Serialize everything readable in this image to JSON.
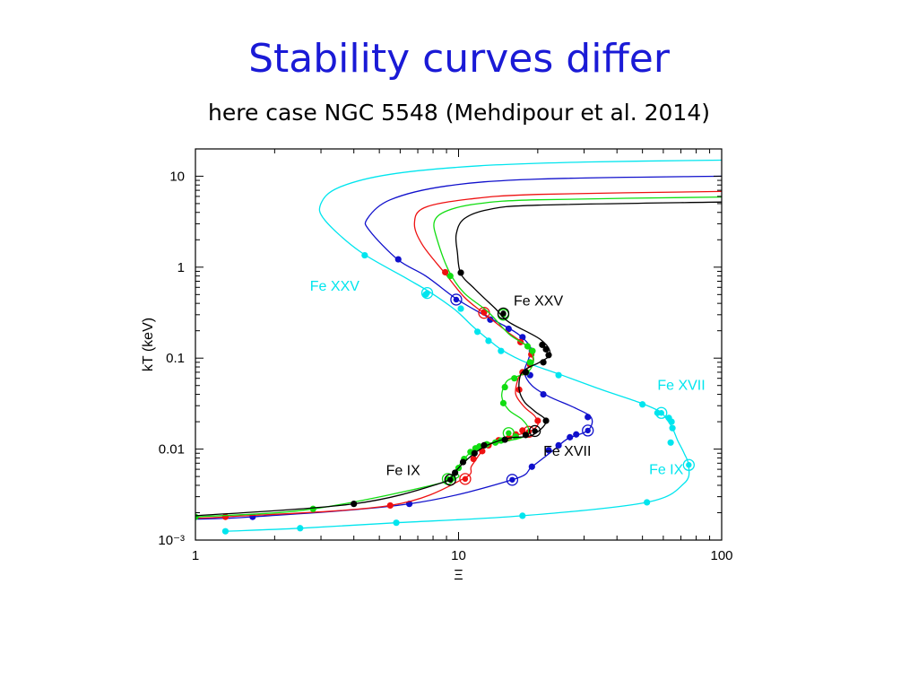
{
  "slide": {
    "title": "Stability curves differ",
    "subtitle": "here case NGC 5548 (Mehdipour et al. 2014)"
  },
  "chart_data": {
    "type": "line",
    "x_scale": "log",
    "y_scale": "log",
    "xlim": [
      1,
      100
    ],
    "ylim": [
      0.001,
      20
    ],
    "xlabel": "Ξ",
    "ylabel": "kT (keV)",
    "x_ticks": [
      {
        "value": 1,
        "label": "1"
      },
      {
        "value": 10,
        "label": "10"
      },
      {
        "value": 100,
        "label": "100"
      }
    ],
    "y_ticks": [
      {
        "value": 0.001,
        "label": "10⁻³"
      },
      {
        "value": 0.01,
        "label": "0.01"
      },
      {
        "value": 0.1,
        "label": "0.1"
      },
      {
        "value": 1,
        "label": "1"
      },
      {
        "value": 10,
        "label": "10"
      }
    ],
    "series": [
      {
        "color": "#00e5ee",
        "curve": [
          [
            1.3,
            0.00125
          ],
          [
            2.5,
            0.00135
          ],
          [
            5.8,
            0.00155
          ],
          [
            17.5,
            0.00185
          ],
          [
            52,
            0.0026
          ],
          [
            72,
            0.0042
          ],
          [
            75,
            0.0065
          ],
          [
            72,
            0.009
          ],
          [
            68,
            0.0125
          ],
          [
            65,
            0.017
          ],
          [
            62,
            0.021
          ],
          [
            58,
            0.026
          ],
          [
            48,
            0.033
          ],
          [
            35,
            0.045
          ],
          [
            24,
            0.067
          ],
          [
            18,
            0.09
          ],
          [
            14.8,
            0.12
          ],
          [
            12.8,
            0.165
          ],
          [
            11.2,
            0.23
          ],
          [
            9.7,
            0.34
          ],
          [
            7.8,
            0.53
          ],
          [
            6.2,
            0.78
          ],
          [
            4.2,
            1.5
          ],
          [
            3.1,
            3.3
          ],
          [
            3.0,
            5.0
          ],
          [
            3.5,
            7.5
          ],
          [
            5.5,
            10.5
          ],
          [
            12,
            13
          ],
          [
            30,
            14.3
          ],
          [
            100,
            15
          ]
        ],
        "points": [
          [
            1.3,
            0.00125
          ],
          [
            2.5,
            0.00135
          ],
          [
            5.8,
            0.00155
          ],
          [
            17.5,
            0.00185
          ],
          [
            52,
            0.0026
          ],
          [
            64,
            0.0118
          ],
          [
            65,
            0.017
          ],
          [
            64.5,
            0.02
          ],
          [
            63,
            0.022
          ],
          [
            57,
            0.025
          ],
          [
            50,
            0.031
          ],
          [
            24,
            0.065
          ],
          [
            14.5,
            0.12
          ],
          [
            13,
            0.155
          ],
          [
            11.8,
            0.195
          ],
          [
            10.2,
            0.35
          ],
          [
            7.5,
            0.5
          ],
          [
            4.4,
            1.35
          ]
        ],
        "rings": [
          [
            75,
            0.0067
          ],
          [
            59,
            0.025
          ],
          [
            7.6,
            0.52
          ]
        ]
      },
      {
        "color": "#1010cc",
        "curve": [
          [
            1,
            0.0017
          ],
          [
            1.65,
            0.0018
          ],
          [
            6.5,
            0.0025
          ],
          [
            16,
            0.0046
          ],
          [
            19,
            0.0064
          ],
          [
            23,
            0.0098
          ],
          [
            26,
            0.013
          ],
          [
            31,
            0.016
          ],
          [
            32,
            0.022
          ],
          [
            28,
            0.028
          ],
          [
            22,
            0.038
          ],
          [
            19,
            0.05
          ],
          [
            17.8,
            0.07
          ],
          [
            18.5,
            0.1
          ],
          [
            18.8,
            0.13
          ],
          [
            17,
            0.18
          ],
          [
            14.8,
            0.23
          ],
          [
            12.2,
            0.31
          ],
          [
            9.8,
            0.45
          ],
          [
            7.5,
            0.8
          ],
          [
            5.9,
            1.2
          ],
          [
            4.6,
            2.5
          ],
          [
            4.5,
            3.4
          ],
          [
            5.5,
            5.5
          ],
          [
            9,
            7.8
          ],
          [
            20,
            9.3
          ],
          [
            100,
            10
          ]
        ],
        "points": [
          [
            1.65,
            0.0018
          ],
          [
            6.5,
            0.0025
          ],
          [
            19,
            0.0064
          ],
          [
            22,
            0.0097
          ],
          [
            24,
            0.011
          ],
          [
            26.5,
            0.0135
          ],
          [
            28,
            0.0145
          ],
          [
            31,
            0.0225
          ],
          [
            21,
            0.04
          ],
          [
            18.7,
            0.065
          ],
          [
            19,
            0.12
          ],
          [
            17.5,
            0.17
          ],
          [
            15.5,
            0.21
          ],
          [
            13.2,
            0.265
          ],
          [
            5.9,
            1.22
          ]
        ],
        "rings": [
          [
            16,
            0.0046
          ],
          [
            31,
            0.016
          ],
          [
            9.8,
            0.44
          ]
        ]
      },
      {
        "color": "#ee1111",
        "curve": [
          [
            1,
            0.00175
          ],
          [
            1.3,
            0.0018
          ],
          [
            5.5,
            0.0024
          ],
          [
            10.4,
            0.0047
          ],
          [
            11.2,
            0.0065
          ],
          [
            12.2,
            0.0093
          ],
          [
            12.8,
            0.0108
          ],
          [
            15.5,
            0.0135
          ],
          [
            18.5,
            0.0155
          ],
          [
            20,
            0.0185
          ],
          [
            19.5,
            0.023
          ],
          [
            17.8,
            0.029
          ],
          [
            16.5,
            0.04
          ],
          [
            16.8,
            0.058
          ],
          [
            17.5,
            0.07
          ],
          [
            18.8,
            0.082
          ],
          [
            19.2,
            0.098
          ],
          [
            18.2,
            0.135
          ],
          [
            15.5,
            0.19
          ],
          [
            12.5,
            0.31
          ],
          [
            10.5,
            0.47
          ],
          [
            8.9,
            0.85
          ],
          [
            7.3,
            1.75
          ],
          [
            6.8,
            3.0
          ],
          [
            7.4,
            4.5
          ],
          [
            11,
            5.6
          ],
          [
            20,
            6.3
          ],
          [
            100,
            6.8
          ]
        ],
        "points": [
          [
            1.3,
            0.0018
          ],
          [
            5.5,
            0.0024
          ],
          [
            11.4,
            0.0078
          ],
          [
            12.3,
            0.0095
          ],
          [
            13,
            0.011
          ],
          [
            14.2,
            0.0125
          ],
          [
            15.5,
            0.0132
          ],
          [
            16.5,
            0.0145
          ],
          [
            17.5,
            0.016
          ],
          [
            20,
            0.0205
          ],
          [
            17,
            0.045
          ],
          [
            17.5,
            0.07
          ],
          [
            18.7,
            0.085
          ],
          [
            18.9,
            0.11
          ],
          [
            17.2,
            0.15
          ],
          [
            12.5,
            0.32
          ],
          [
            8.9,
            0.88
          ]
        ],
        "rings": [
          [
            10.6,
            0.0047
          ],
          [
            18.5,
            0.0155
          ],
          [
            12.5,
            0.315
          ]
        ]
      },
      {
        "color": "#11dd11",
        "curve": [
          [
            1,
            0.0018
          ],
          [
            2.8,
            0.0022
          ],
          [
            9,
            0.0044
          ],
          [
            9.7,
            0.0058
          ],
          [
            10.5,
            0.0078
          ],
          [
            11.4,
            0.0098
          ],
          [
            12.5,
            0.0113
          ],
          [
            15,
            0.0122
          ],
          [
            17.5,
            0.0135
          ],
          [
            18.5,
            0.016
          ],
          [
            17.5,
            0.021
          ],
          [
            15.5,
            0.027
          ],
          [
            14.6,
            0.038
          ],
          [
            15.2,
            0.055
          ],
          [
            16.5,
            0.062
          ],
          [
            18.5,
            0.072
          ],
          [
            19.3,
            0.098
          ],
          [
            18.2,
            0.135
          ],
          [
            15.5,
            0.185
          ],
          [
            13,
            0.32
          ],
          [
            10.5,
            0.52
          ],
          [
            9.2,
            0.9
          ],
          [
            8.3,
            2.0
          ],
          [
            8.1,
            3.2
          ],
          [
            9.1,
            4.2
          ],
          [
            12,
            5.0
          ],
          [
            20,
            5.5
          ],
          [
            100,
            5.9
          ]
        ],
        "points": [
          [
            1,
            0.0018
          ],
          [
            2.8,
            0.0022
          ],
          [
            9.5,
            0.0048
          ],
          [
            10,
            0.0062
          ],
          [
            10.5,
            0.0078
          ],
          [
            11.1,
            0.0093
          ],
          [
            11.6,
            0.0102
          ],
          [
            12,
            0.0107
          ],
          [
            12.8,
            0.0113
          ],
          [
            13.8,
            0.0118
          ],
          [
            14.5,
            0.0124
          ],
          [
            16.5,
            0.0137
          ],
          [
            14.8,
            0.032
          ],
          [
            15,
            0.048
          ],
          [
            16.3,
            0.06
          ],
          [
            18.1,
            0.07
          ],
          [
            18.7,
            0.09
          ],
          [
            19.1,
            0.12
          ],
          [
            18.3,
            0.135
          ],
          [
            9.3,
            0.8
          ]
        ],
        "rings": [
          [
            9.1,
            0.0047
          ],
          [
            15.5,
            0.015
          ],
          [
            14.8,
            0.3
          ]
        ]
      },
      {
        "color": "#000000",
        "curve": [
          [
            1,
            0.00185
          ],
          [
            4,
            0.0025
          ],
          [
            8.5,
            0.0042
          ],
          [
            9.6,
            0.0055
          ],
          [
            10.5,
            0.0072
          ],
          [
            11.8,
            0.0095
          ],
          [
            13,
            0.0112
          ],
          [
            15.5,
            0.0132
          ],
          [
            19,
            0.0142
          ],
          [
            21.5,
            0.02
          ],
          [
            19.5,
            0.026
          ],
          [
            17.8,
            0.033
          ],
          [
            17,
            0.045
          ],
          [
            17.2,
            0.065
          ],
          [
            18.3,
            0.078
          ],
          [
            20.3,
            0.09
          ],
          [
            22.3,
            0.112
          ],
          [
            20.5,
            0.16
          ],
          [
            15.5,
            0.25
          ],
          [
            13.8,
            0.35
          ],
          [
            11.5,
            0.58
          ],
          [
            10.2,
            0.85
          ],
          [
            9.9,
            1.45
          ],
          [
            9.8,
            2.3
          ],
          [
            10.5,
            3.4
          ],
          [
            13,
            4.3
          ],
          [
            20,
            4.8
          ],
          [
            100,
            5.2
          ]
        ],
        "points": [
          [
            4,
            0.0025
          ],
          [
            9.7,
            0.0055
          ],
          [
            10.4,
            0.0072
          ],
          [
            11.5,
            0.009
          ],
          [
            12.5,
            0.011
          ],
          [
            15,
            0.0127
          ],
          [
            18,
            0.0143
          ],
          [
            21.5,
            0.0205
          ],
          [
            18,
            0.07
          ],
          [
            21,
            0.09
          ],
          [
            22,
            0.108
          ],
          [
            21.5,
            0.125
          ],
          [
            20.8,
            0.14
          ],
          [
            10.2,
            0.87
          ]
        ],
        "rings": [
          [
            9.3,
            0.0046
          ],
          [
            19.5,
            0.0158
          ],
          [
            14.8,
            0.31
          ]
        ]
      }
    ],
    "annotations": [
      {
        "text": "Fe XXV",
        "color": "#00e5ee",
        "x": 4.2,
        "y": 0.55,
        "anchor": "end"
      },
      {
        "text": "Fe XXV",
        "color": "#000000",
        "x": 16.2,
        "y": 0.38,
        "anchor": "start"
      },
      {
        "text": "Fe XVII",
        "color": "#00e5ee",
        "x": 57,
        "y": 0.045,
        "anchor": "start"
      },
      {
        "text": "Fe XVII",
        "color": "#000000",
        "x": 21,
        "y": 0.0085,
        "anchor": "start"
      },
      {
        "text": "Fe IX",
        "color": "#000000",
        "x": 5.3,
        "y": 0.0052,
        "anchor": "start"
      },
      {
        "text": "Fe IX",
        "color": "#00e5ee",
        "x": 53,
        "y": 0.0053,
        "anchor": "start"
      }
    ]
  }
}
